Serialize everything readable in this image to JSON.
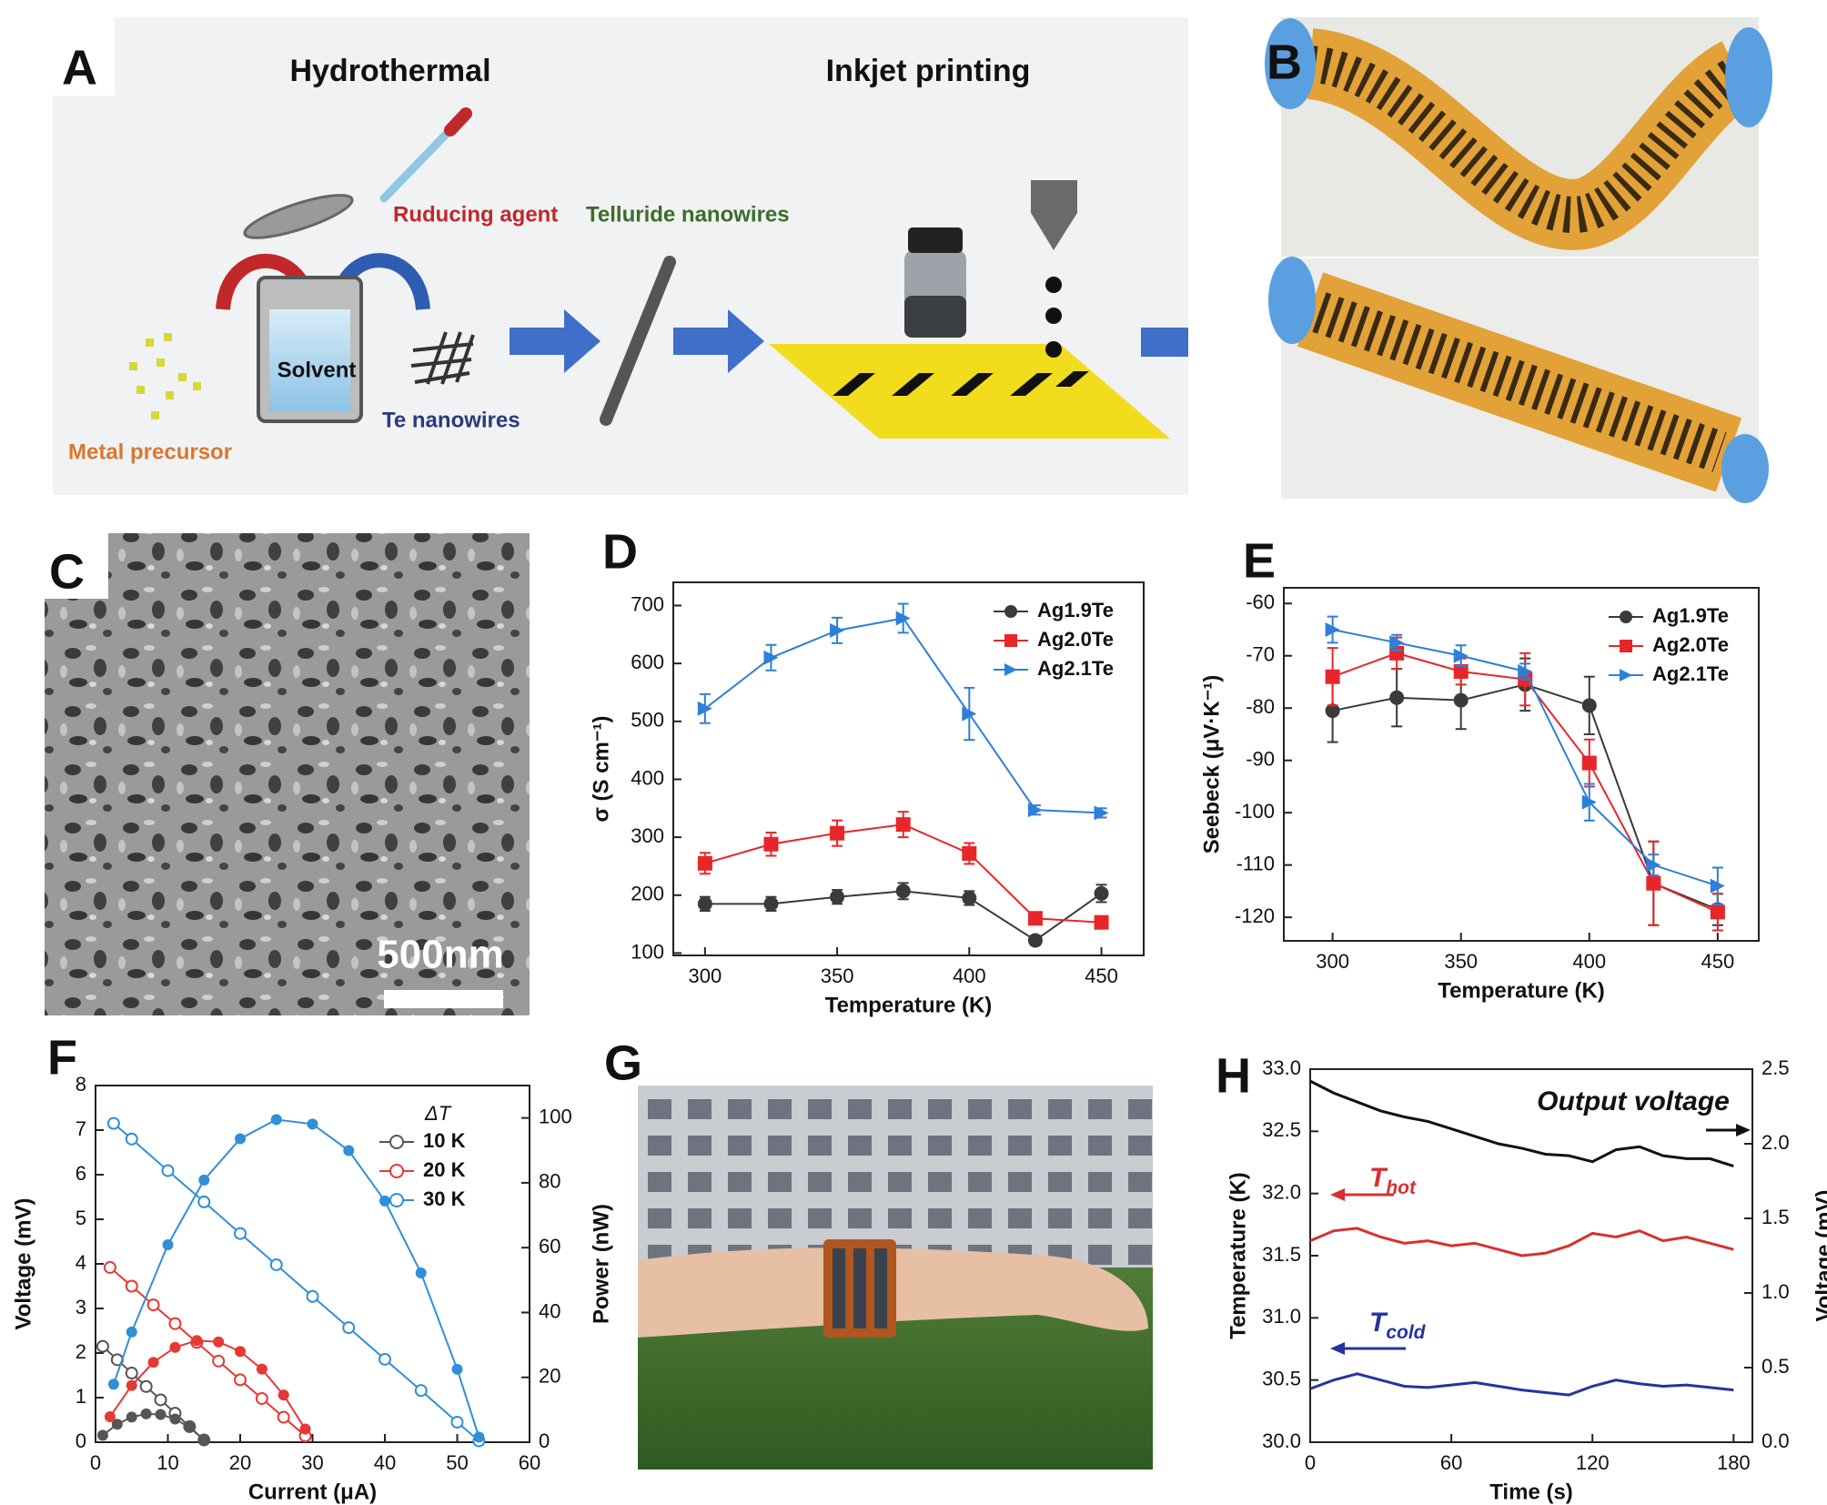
{
  "panels": {
    "A": {
      "label": "A",
      "title_left": "Hydrothermal",
      "title_right": "Inkjet printing",
      "reducing_agent": "Ruducing agent",
      "telluride_nanowires": "Telluride nanowires",
      "solvent": "Solvent",
      "te_nanowires": "Te nanowires",
      "metal_precursor": "Metal precursor"
    },
    "B": {
      "label": "B"
    },
    "C": {
      "label": "C",
      "scale_bar": "500nm"
    },
    "D": {
      "label": "D"
    },
    "E": {
      "label": "E"
    },
    "F": {
      "label": "F"
    },
    "G": {
      "label": "G"
    },
    "H": {
      "label": "H"
    }
  },
  "chart_data": [
    {
      "type": "line",
      "xlabel": "Temperature (K)",
      "ylabel": "σ (S cm⁻¹)",
      "x": [
        300,
        325,
        350,
        375,
        400,
        425,
        450
      ],
      "xlim": [
        288,
        466
      ],
      "xticks": [
        300,
        350,
        400,
        450
      ],
      "ylim": [
        96,
        740
      ],
      "yticks": [
        100,
        200,
        300,
        400,
        500,
        600,
        700
      ],
      "legend": "upper right",
      "series": [
        {
          "name": "Ag1.9Te",
          "color": "#3a3a3a",
          "marker": "circle",
          "values": [
            185,
            185,
            197,
            207,
            195,
            122,
            203
          ],
          "errors": [
            12,
            12,
            12,
            14,
            12,
            8,
            15
          ]
        },
        {
          "name": "Ag2.0Te",
          "color": "#e8262a",
          "marker": "square",
          "values": [
            255,
            288,
            307,
            322,
            272,
            160,
            153
          ],
          "errors": [
            18,
            20,
            22,
            22,
            18,
            10,
            8
          ]
        },
        {
          "name": "Ag2.1Te",
          "color": "#2e7fd8",
          "marker": "triangle-right",
          "values": [
            522,
            610,
            657,
            678,
            513,
            347,
            342
          ],
          "errors": [
            25,
            22,
            22,
            25,
            45,
            8,
            8
          ]
        }
      ]
    },
    {
      "type": "line",
      "xlabel": "Temperature (K)",
      "ylabel": "Seebeck (μV·K⁻¹)",
      "x": [
        300,
        325,
        350,
        375,
        400,
        425,
        450
      ],
      "xlim": [
        281,
        466
      ],
      "xticks": [
        300,
        350,
        400,
        450
      ],
      "ylim": [
        -124.5,
        -57
      ],
      "yticks": [
        -60,
        -70,
        -80,
        -90,
        -100,
        -110,
        -120
      ],
      "legend": "upper right",
      "series": [
        {
          "name": "Ag1.9Te",
          "color": "#3a3a3a",
          "marker": "circle",
          "values": [
            -80.5,
            -78,
            -78.5,
            -75.5,
            -79.5,
            -113.5,
            -118.5
          ],
          "errors": [
            6,
            5.5,
            5.5,
            5,
            5.5,
            8,
            3
          ]
        },
        {
          "name": "Ag2.0Te",
          "color": "#e8262a",
          "marker": "square",
          "values": [
            -74,
            -69.5,
            -73,
            -74.5,
            -90.5,
            -113.5,
            -119
          ],
          "errors": [
            5.5,
            3,
            2.5,
            5,
            4.5,
            8,
            3.5
          ]
        },
        {
          "name": "Ag2.1Te",
          "color": "#2e7fd8",
          "marker": "triangle-right",
          "values": [
            -65,
            -67.5,
            -70,
            -73,
            -98,
            -110,
            -114
          ],
          "errors": [
            2.5,
            1.5,
            2,
            1.5,
            3.5,
            2,
            3.5
          ]
        }
      ]
    },
    {
      "type": "line",
      "xlabel": "Current (μA)",
      "ylabel": "Voltage (mV)",
      "y2label": "Power (nW)",
      "xlim": [
        0,
        60
      ],
      "xticks": [
        0,
        10,
        20,
        30,
        40,
        50,
        60
      ],
      "ylim": [
        0,
        8
      ],
      "yticks": [
        0,
        1,
        2,
        3,
        4,
        5,
        6,
        7,
        8
      ],
      "y2lim": [
        0,
        110
      ],
      "y2ticks": [
        0,
        20,
        40,
        60,
        80,
        100
      ],
      "legend": "upper right",
      "legend_title": "ΔT",
      "series": [
        {
          "name": "10 K",
          "color": "#555555",
          "marker": "open-circle",
          "y2_marker": "circle",
          "x": [
            1,
            3,
            5,
            7,
            9,
            11,
            13,
            15
          ],
          "values": [
            2.15,
            1.85,
            1.55,
            1.25,
            0.95,
            0.65,
            0.35,
            0.05
          ],
          "y2_values": [
            2.15,
            5.55,
            7.75,
            8.75,
            8.55,
            7.15,
            4.55,
            0.75
          ]
        },
        {
          "name": "20 K",
          "color": "#e53935",
          "marker": "open-circle",
          "y2_marker": "circle",
          "x": [
            2,
            5,
            8,
            11,
            14,
            17,
            20,
            23,
            26,
            29
          ],
          "values": [
            3.92,
            3.5,
            3.08,
            2.66,
            2.24,
            1.82,
            1.4,
            0.98,
            0.56,
            0.14
          ],
          "y2_values": [
            7.84,
            17.5,
            24.64,
            29.26,
            31.36,
            30.94,
            28,
            22.54,
            14.56,
            4.06
          ]
        },
        {
          "name": "30 K",
          "color": "#2f8fd8",
          "marker": "open-circle",
          "y2_marker": "circle",
          "x": [
            2.5,
            5,
            10,
            15,
            20,
            25,
            30,
            35,
            40,
            45,
            50,
            53
          ],
          "values": [
            7.15,
            6.8,
            6.09,
            5.39,
            4.68,
            3.98,
            3.27,
            2.57,
            1.86,
            1.16,
            0.45,
            0.03
          ],
          "y2_values": [
            17.88,
            34,
            60.9,
            80.85,
            93.6,
            99.5,
            98.1,
            89.95,
            74.4,
            52.2,
            22.5,
            1.59
          ]
        }
      ]
    },
    {
      "type": "line",
      "xlabel": "Time (s)",
      "ylabel": "Temperature (K)",
      "y2label": "Voltage (mV)",
      "x": [
        0,
        10,
        20,
        30,
        40,
        50,
        60,
        70,
        80,
        90,
        100,
        110,
        120,
        130,
        140,
        150,
        160,
        170,
        180
      ],
      "xlim": [
        0,
        188
      ],
      "xticks": [
        0,
        60,
        120,
        180
      ],
      "ylim": [
        30,
        33
      ],
      "yticks": [
        {
          "value": 30,
          "label": "30.0"
        },
        30.5,
        {
          "value": 31,
          "label": "31.0"
        },
        31.5,
        {
          "value": 32,
          "label": "32.0"
        },
        32.5,
        {
          "value": 33,
          "label": "33.0"
        }
      ],
      "y2lim": [
        0,
        2.5
      ],
      "y2ticks": [
        {
          "value": 0,
          "label": "0.0"
        },
        0.5,
        {
          "value": 1,
          "label": "1.0"
        },
        1.5,
        {
          "value": 2,
          "label": "2.0"
        },
        2.5
      ],
      "series": [
        {
          "color": "#d83030",
          "values": [
            31.62,
            31.7,
            31.72,
            31.65,
            31.6,
            31.62,
            31.58,
            31.6,
            31.55,
            31.5,
            31.52,
            31.58,
            31.68,
            31.65,
            31.7,
            31.62,
            31.65,
            31.6,
            31.55
          ]
        },
        {
          "color": "#2434a0",
          "values": [
            30.43,
            30.5,
            30.55,
            30.5,
            30.45,
            30.44,
            30.46,
            30.48,
            30.45,
            30.42,
            30.4,
            30.38,
            30.45,
            30.5,
            30.47,
            30.45,
            30.46,
            30.44,
            30.42
          ]
        },
        {
          "color": "#111111",
          "axis": "y2",
          "values": [
            2.42,
            2.34,
            2.28,
            2.22,
            2.18,
            2.15,
            2.1,
            2.05,
            2.0,
            1.97,
            1.93,
            1.92,
            1.88,
            1.96,
            1.98,
            1.92,
            1.9,
            1.9,
            1.85
          ]
        }
      ],
      "annotations": [
        {
          "text": "Output voltage",
          "color": "#111111"
        },
        {
          "text": "T",
          "sub": "hot",
          "color": "#d83030"
        },
        {
          "text": "T",
          "sub": "cold",
          "color": "#2434a0"
        }
      ]
    }
  ]
}
